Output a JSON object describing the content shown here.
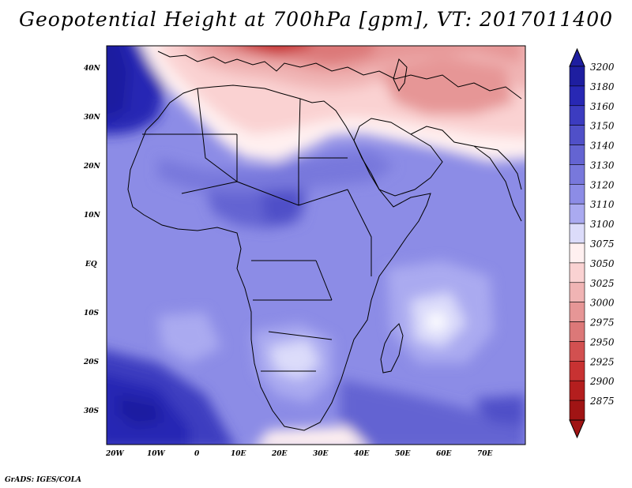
{
  "title": "Geopotential Height at 700hPa [gpm], VT: 2017011400",
  "credit": "GrADS: IGES/COLA",
  "map": {
    "lat_labels": [
      "40N",
      "30N",
      "20N",
      "10N",
      "EQ",
      "10S",
      "20S",
      "30S"
    ],
    "lon_labels": [
      "20W",
      "10W",
      "0",
      "10E",
      "20E",
      "30E",
      "40E",
      "50E",
      "60E",
      "70E"
    ]
  },
  "colorbar": {
    "levels": [
      "3200",
      "3180",
      "3160",
      "3150",
      "3140",
      "3130",
      "3120",
      "3110",
      "3100",
      "3075",
      "3050",
      "3025",
      "3000",
      "2975",
      "2950",
      "2925",
      "2900",
      "2875"
    ],
    "colors": [
      "#1e1ea0",
      "#2828b4",
      "#3c3cc0",
      "#5050c8",
      "#6464d2",
      "#7878dc",
      "#8c8ce6",
      "#aaaaf0",
      "#dcdcfa",
      "#fff0f0",
      "#fad2d2",
      "#f0b4b4",
      "#e69696",
      "#dc7878",
      "#d25050",
      "#c83232",
      "#b41e1e",
      "#a01414"
    ]
  }
}
